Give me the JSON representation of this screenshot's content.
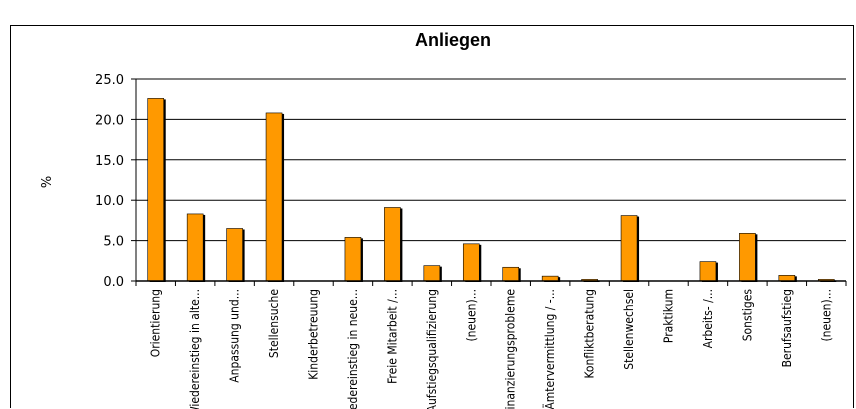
{
  "chart_data": {
    "type": "bar",
    "title": "Anliegen",
    "ylabel": "%",
    "xlabel": "",
    "ylim": [
      0,
      25
    ],
    "yticks": [
      "0.0",
      "5.0",
      "10.0",
      "15.0",
      "20.0",
      "25.0"
    ],
    "grid": true,
    "legend": "none",
    "bar_color": "#ff9900",
    "categories": [
      "Orientierung",
      "Wiedereinstieg in alte...",
      "Anpassung und...",
      "Stellensuche",
      "Kinderbetreuung",
      "Wiedereinstieg in neue...",
      "Freie Mitarbeit /...",
      "Aufstiegsqualifizierung",
      "(neuen)...",
      "Finanzierungsprobleme",
      "Ämtervermittlung / -...",
      "Konfliktberatung",
      "Stellenwechsel",
      "Praktikum",
      "Arbeits- /...",
      "Sonstiges",
      "Berufsaufstieg",
      "(neuen)..."
    ],
    "values": [
      22.6,
      8.3,
      6.5,
      20.8,
      0.0,
      5.4,
      9.1,
      1.9,
      4.6,
      1.7,
      0.6,
      0.2,
      8.1,
      0.0,
      2.4,
      5.9,
      0.7,
      0.2
    ]
  }
}
